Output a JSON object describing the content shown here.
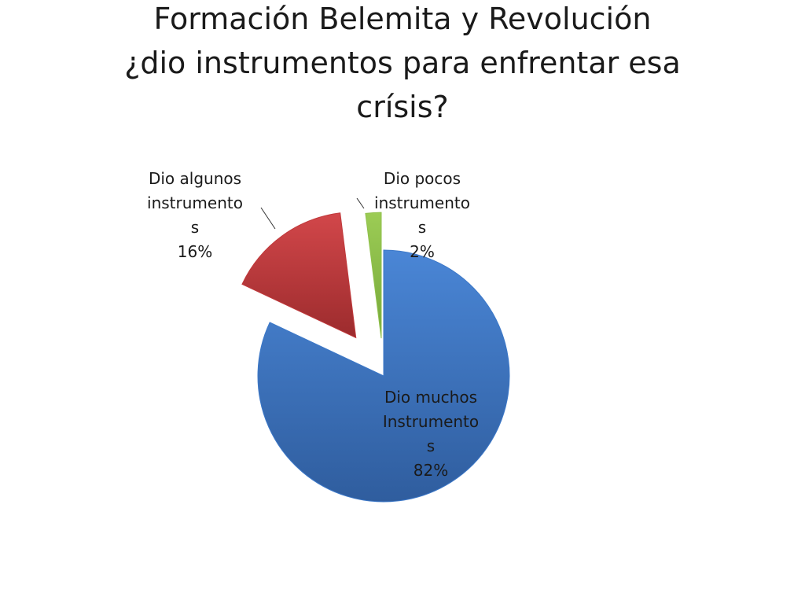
{
  "title_lines": [
    "Formación Belemita y Revolución",
    "¿dio instrumentos para enfrentar esa",
    "crísis?"
  ],
  "chart_data": {
    "type": "pie",
    "title": "Formación Belemita y Revolución ¿dio instrumentos para enfrentar esa crísis?",
    "slices": [
      {
        "key": "muchos",
        "value": 82,
        "color": "#3c78c8",
        "label_lines": [
          "Dio muchos",
          "Instrumento",
          "s",
          "82%"
        ]
      },
      {
        "key": "algunos",
        "value": 16,
        "color": "#c0393b",
        "label_lines": [
          "Dio algunos",
          "instrumento",
          "s",
          "16%"
        ]
      },
      {
        "key": "pocos",
        "value": 2,
        "color": "#8fc04a",
        "label_lines": [
          "Dio pocos",
          "instrumento",
          "s",
          "2%"
        ]
      }
    ],
    "exploded": true,
    "legend": "none"
  }
}
